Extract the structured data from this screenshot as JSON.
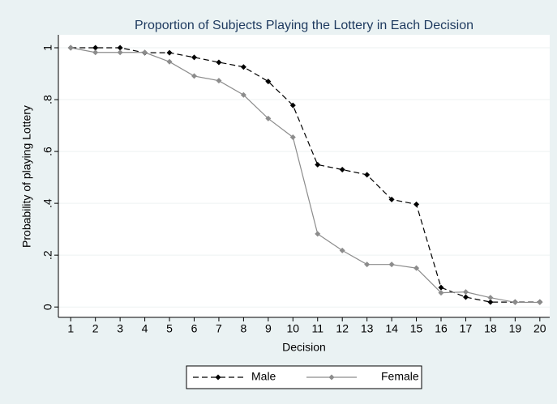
{
  "chart_data": {
    "type": "line",
    "title": "Proportion of Subjects Playing the Lottery in Each Decision",
    "x_label": "Decision",
    "y_label": "Probability of playing Lottery",
    "x": [
      1,
      2,
      3,
      4,
      5,
      6,
      7,
      8,
      9,
      10,
      11,
      12,
      13,
      14,
      15,
      16,
      17,
      18,
      19,
      20
    ],
    "series": [
      {
        "name": "Male",
        "color": "#000000",
        "dash": true,
        "values": [
          1,
          1,
          1,
          0.981,
          0.981,
          0.963,
          0.944,
          0.926,
          0.87,
          0.778,
          0.549,
          0.53,
          0.51,
          0.415,
          0.396,
          0.075,
          0.038,
          0.019,
          0.019,
          0.019
        ]
      },
      {
        "name": "Female",
        "color": "#8c8c8c",
        "dash": false,
        "values": [
          1,
          0.982,
          0.982,
          0.982,
          0.946,
          0.891,
          0.873,
          0.818,
          0.727,
          0.655,
          0.282,
          0.218,
          0.164,
          0.164,
          0.15,
          0.055,
          0.058,
          0.036,
          0.018,
          0.018
        ]
      }
    ],
    "xlim": [
      0.5,
      20.4
    ],
    "xticks": [
      1,
      2,
      3,
      4,
      5,
      6,
      7,
      8,
      9,
      10,
      11,
      12,
      13,
      14,
      15,
      16,
      17,
      18,
      19,
      20
    ],
    "ylim": [
      -0.04,
      1.05
    ],
    "yticks": [
      0,
      {
        "value": 0.2,
        "label": ".2"
      },
      {
        "value": 0.4,
        "label": ".4"
      },
      {
        "value": 0.6,
        "label": ".6"
      },
      {
        "value": 0.8,
        "label": ".8"
      },
      1
    ],
    "grid": true,
    "legend": "bottom"
  }
}
